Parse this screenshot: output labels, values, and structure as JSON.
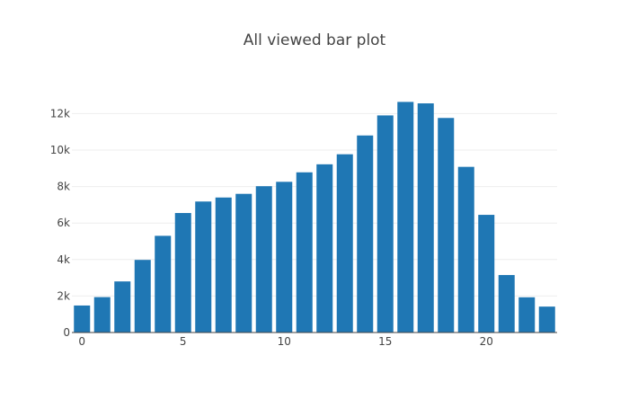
{
  "chart_data": {
    "type": "bar",
    "title": "All viewed bar plot",
    "xlabel": "",
    "ylabel": "",
    "x": [
      0,
      1,
      2,
      3,
      4,
      5,
      6,
      7,
      8,
      9,
      10,
      11,
      12,
      13,
      14,
      15,
      16,
      17,
      18,
      19,
      20,
      21,
      22,
      23
    ],
    "values": [
      1480,
      1940,
      2800,
      3980,
      5300,
      6550,
      7180,
      7400,
      7600,
      8020,
      8260,
      8780,
      9220,
      9770,
      10800,
      11900,
      12640,
      12560,
      11760,
      9080,
      6450,
      3150,
      1930,
      1420
    ],
    "xlim": [
      -0.5,
      23.5
    ],
    "ylim": [
      0,
      13300
    ],
    "x_ticks": [
      0,
      5,
      10,
      15,
      20
    ],
    "x_tick_labels": [
      "0",
      "5",
      "10",
      "15",
      "20"
    ],
    "y_ticks": [
      0,
      2000,
      4000,
      6000,
      8000,
      10000,
      12000
    ],
    "y_tick_labels": [
      "0",
      "2k",
      "4k",
      "6k",
      "8k",
      "10k",
      "12k"
    ],
    "grid": true,
    "color": "#1f77b4",
    "axis_color": "#444444",
    "grid_color": "#eeeeee"
  }
}
